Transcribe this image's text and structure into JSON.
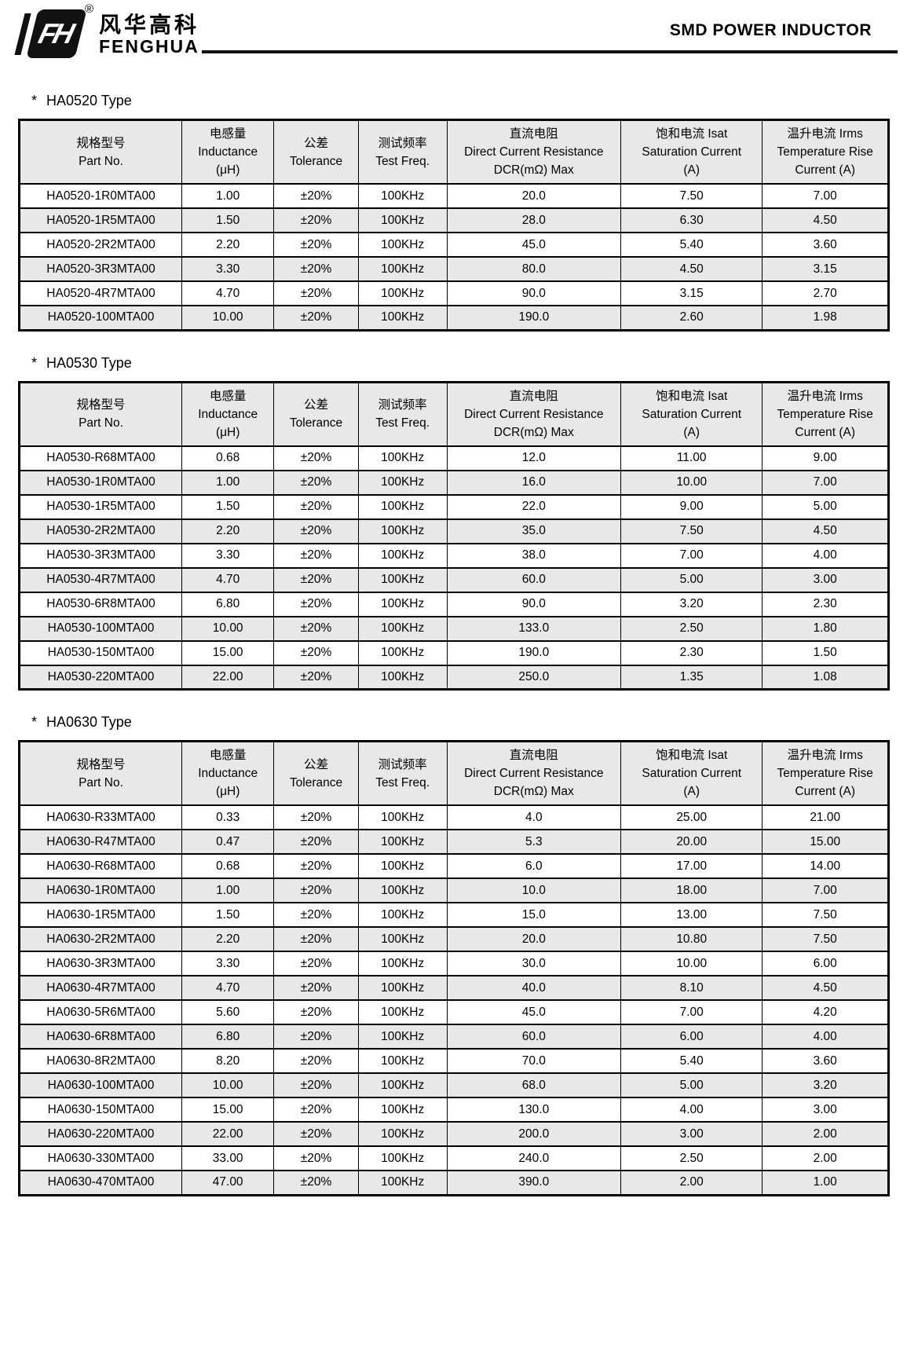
{
  "brand": {
    "monogram": "FH",
    "registered_mark": "®",
    "name_cn": "风华高科",
    "name_en": "FENGHUA"
  },
  "page_title": "SMD POWER INDUCTOR",
  "colors": {
    "table_stripe": "#e8e8e8",
    "header_bg": "#e8e8e8",
    "border": "#000000",
    "text": "#000000"
  },
  "columns": [
    {
      "lines": [
        "规格型号",
        "Part No."
      ]
    },
    {
      "lines": [
        "电感量",
        "Inductance",
        "(μH)"
      ]
    },
    {
      "lines": [
        "公差",
        "Tolerance"
      ]
    },
    {
      "lines": [
        "测试频率",
        "Test Freq."
      ]
    },
    {
      "lines": [
        "直流电阻",
        "Direct Current Resistance",
        "DCR(mΩ) Max"
      ]
    },
    {
      "lines": [
        "饱和电流 Isat",
        "Saturation Current",
        "(A)"
      ]
    },
    {
      "lines": [
        "温升电流 Irms",
        "Temperature Rise",
        "Current (A)"
      ]
    }
  ],
  "tables": [
    {
      "star": "*",
      "heading": "HA0520 Type",
      "rows": [
        [
          "HA0520-1R0MTA00",
          "1.00",
          "±20%",
          "100KHz",
          "20.0",
          "7.50",
          "7.00"
        ],
        [
          "HA0520-1R5MTA00",
          "1.50",
          "±20%",
          "100KHz",
          "28.0",
          "6.30",
          "4.50"
        ],
        [
          "HA0520-2R2MTA00",
          "2.20",
          "±20%",
          "100KHz",
          "45.0",
          "5.40",
          "3.60"
        ],
        [
          "HA0520-3R3MTA00",
          "3.30",
          "±20%",
          "100KHz",
          "80.0",
          "4.50",
          "3.15"
        ],
        [
          "HA0520-4R7MTA00",
          "4.70",
          "±20%",
          "100KHz",
          "90.0",
          "3.15",
          "2.70"
        ],
        [
          "HA0520-100MTA00",
          "10.00",
          "±20%",
          "100KHz",
          "190.0",
          "2.60",
          "1.98"
        ]
      ]
    },
    {
      "star": "*",
      "heading": "HA0530 Type",
      "rows": [
        [
          "HA0530-R68MTA00",
          "0.68",
          "±20%",
          "100KHz",
          "12.0",
          "11.00",
          "9.00"
        ],
        [
          "HA0530-1R0MTA00",
          "1.00",
          "±20%",
          "100KHz",
          "16.0",
          "10.00",
          "7.00"
        ],
        [
          "HA0530-1R5MTA00",
          "1.50",
          "±20%",
          "100KHz",
          "22.0",
          "9.00",
          "5.00"
        ],
        [
          "HA0530-2R2MTA00",
          "2.20",
          "±20%",
          "100KHz",
          "35.0",
          "7.50",
          "4.50"
        ],
        [
          "HA0530-3R3MTA00",
          "3.30",
          "±20%",
          "100KHz",
          "38.0",
          "7.00",
          "4.00"
        ],
        [
          "HA0530-4R7MTA00",
          "4.70",
          "±20%",
          "100KHz",
          "60.0",
          "5.00",
          "3.00"
        ],
        [
          "HA0530-6R8MTA00",
          "6.80",
          "±20%",
          "100KHz",
          "90.0",
          "3.20",
          "2.30"
        ],
        [
          "HA0530-100MTA00",
          "10.00",
          "±20%",
          "100KHz",
          "133.0",
          "2.50",
          "1.80"
        ],
        [
          "HA0530-150MTA00",
          "15.00",
          "±20%",
          "100KHz",
          "190.0",
          "2.30",
          "1.50"
        ],
        [
          "HA0530-220MTA00",
          "22.00",
          "±20%",
          "100KHz",
          "250.0",
          "1.35",
          "1.08"
        ]
      ]
    },
    {
      "star": "*",
      "heading": "HA0630 Type",
      "rows": [
        [
          "HA0630-R33MTA00",
          "0.33",
          "±20%",
          "100KHz",
          "4.0",
          "25.00",
          "21.00"
        ],
        [
          "HA0630-R47MTA00",
          "0.47",
          "±20%",
          "100KHz",
          "5.3",
          "20.00",
          "15.00"
        ],
        [
          "HA0630-R68MTA00",
          "0.68",
          "±20%",
          "100KHz",
          "6.0",
          "17.00",
          "14.00"
        ],
        [
          "HA0630-1R0MTA00",
          "1.00",
          "±20%",
          "100KHz",
          "10.0",
          "18.00",
          "7.00"
        ],
        [
          "HA0630-1R5MTA00",
          "1.50",
          "±20%",
          "100KHz",
          "15.0",
          "13.00",
          "7.50"
        ],
        [
          "HA0630-2R2MTA00",
          "2.20",
          "±20%",
          "100KHz",
          "20.0",
          "10.80",
          "7.50"
        ],
        [
          "HA0630-3R3MTA00",
          "3.30",
          "±20%",
          "100KHz",
          "30.0",
          "10.00",
          "6.00"
        ],
        [
          "HA0630-4R7MTA00",
          "4.70",
          "±20%",
          "100KHz",
          "40.0",
          "8.10",
          "4.50"
        ],
        [
          "HA0630-5R6MTA00",
          "5.60",
          "±20%",
          "100KHz",
          "45.0",
          "7.00",
          "4.20"
        ],
        [
          "HA0630-6R8MTA00",
          "6.80",
          "±20%",
          "100KHz",
          "60.0",
          "6.00",
          "4.00"
        ],
        [
          "HA0630-8R2MTA00",
          "8.20",
          "±20%",
          "100KHz",
          "70.0",
          "5.40",
          "3.60"
        ],
        [
          "HA0630-100MTA00",
          "10.00",
          "±20%",
          "100KHz",
          "68.0",
          "5.00",
          "3.20"
        ],
        [
          "HA0630-150MTA00",
          "15.00",
          "±20%",
          "100KHz",
          "130.0",
          "4.00",
          "3.00"
        ],
        [
          "HA0630-220MTA00",
          "22.00",
          "±20%",
          "100KHz",
          "200.0",
          "3.00",
          "2.00"
        ],
        [
          "HA0630-330MTA00",
          "33.00",
          "±20%",
          "100KHz",
          "240.0",
          "2.50",
          "2.00"
        ],
        [
          "HA0630-470MTA00",
          "47.00",
          "±20%",
          "100KHz",
          "390.0",
          "2.00",
          "1.00"
        ]
      ]
    }
  ]
}
